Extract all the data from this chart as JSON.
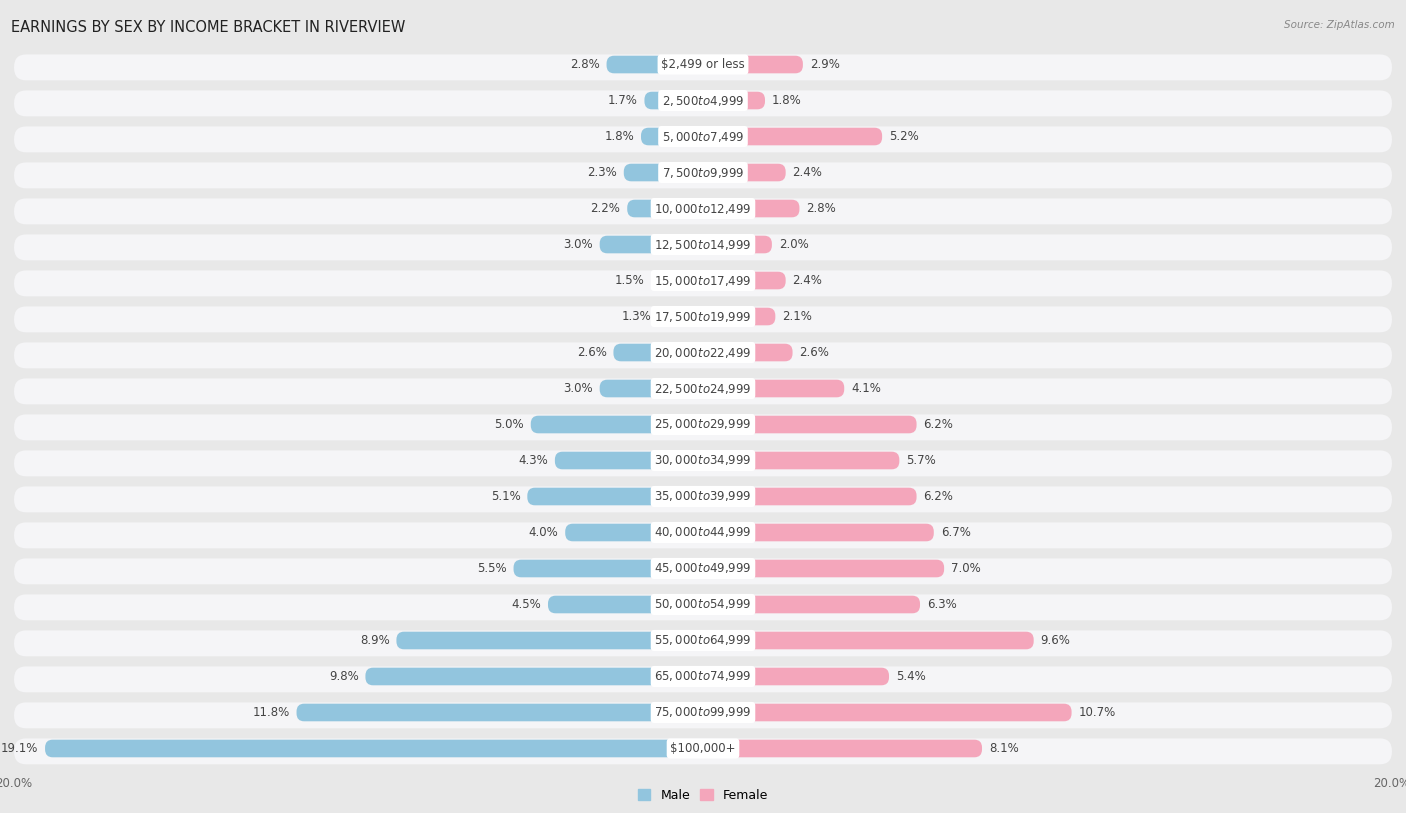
{
  "title": "EARNINGS BY SEX BY INCOME BRACKET IN RIVERVIEW",
  "source": "Source: ZipAtlas.com",
  "categories": [
    "$2,499 or less",
    "$2,500 to $4,999",
    "$5,000 to $7,499",
    "$7,500 to $9,999",
    "$10,000 to $12,499",
    "$12,500 to $14,999",
    "$15,000 to $17,499",
    "$17,500 to $19,999",
    "$20,000 to $22,499",
    "$22,500 to $24,999",
    "$25,000 to $29,999",
    "$30,000 to $34,999",
    "$35,000 to $39,999",
    "$40,000 to $44,999",
    "$45,000 to $49,999",
    "$50,000 to $54,999",
    "$55,000 to $64,999",
    "$65,000 to $74,999",
    "$75,000 to $99,999",
    "$100,000+"
  ],
  "male": [
    2.8,
    1.7,
    1.8,
    2.3,
    2.2,
    3.0,
    1.5,
    1.3,
    2.6,
    3.0,
    5.0,
    4.3,
    5.1,
    4.0,
    5.5,
    4.5,
    8.9,
    9.8,
    11.8,
    19.1
  ],
  "female": [
    2.9,
    1.8,
    5.2,
    2.4,
    2.8,
    2.0,
    2.4,
    2.1,
    2.6,
    4.1,
    6.2,
    5.7,
    6.2,
    6.7,
    7.0,
    6.3,
    9.6,
    5.4,
    10.7,
    8.1
  ],
  "male_color": "#92c5de",
  "female_color": "#f4a6bb",
  "male_label": "Male",
  "female_label": "Female",
  "xlim": 20.0,
  "bg_color": "#e8e8e8",
  "row_light": "#f5f5f7",
  "row_dark": "#e8e8e8",
  "tick_label_color": "#666666",
  "value_label_color": "#444444",
  "title_fontsize": 10.5,
  "label_fontsize": 8.5,
  "category_fontsize": 8.5
}
